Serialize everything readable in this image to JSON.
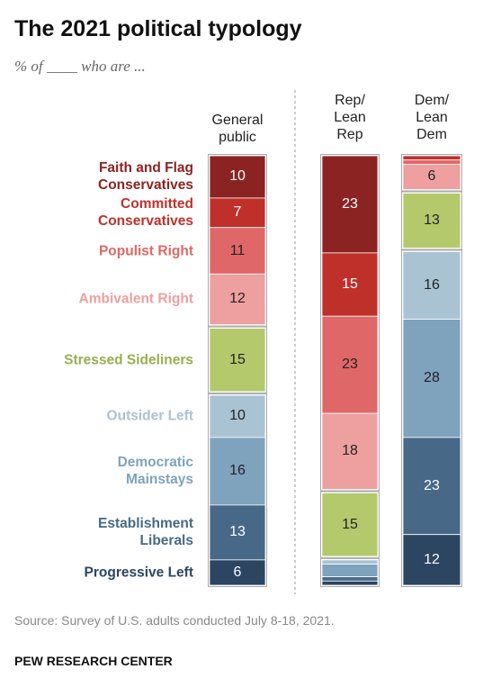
{
  "chart_data": {
    "type": "stacked_bar",
    "title": "The 2021 political typology",
    "subtitle": "% of ____ who are ...",
    "categories": [
      "Faith and Flag Conservatives",
      "Committed Conservatives",
      "Populist Right",
      "Ambivalent Right",
      "Stressed Sideliners",
      "Outsider Left",
      "Democratic Mainstays",
      "Establishment Liberals",
      "Progressive Left"
    ],
    "colors": [
      "#8b2323",
      "#c0302b",
      "#e06767",
      "#ee9f9f",
      "#b4c96b",
      "#a9c3d3",
      "#7fa2bd",
      "#476987",
      "#2c4561"
    ],
    "label_colors": [
      "#8b2323",
      "#c0302b",
      "#e06767",
      "#ee9f9f",
      "#9aad4f",
      "#a9c3d3",
      "#7fa2bd",
      "#476987",
      "#2c4561"
    ],
    "series": [
      {
        "name": "General public",
        "values": [
          10,
          7,
          11,
          12,
          15,
          10,
          16,
          13,
          6
        ]
      },
      {
        "name": "Rep/ Lean Rep",
        "values": [
          23,
          15,
          23,
          18,
          15,
          1,
          3,
          1,
          1
        ]
      },
      {
        "name": "Dem/ Lean Dem",
        "values": [
          0,
          1,
          1,
          6,
          13,
          16,
          28,
          23,
          12
        ]
      }
    ],
    "source": "Source: Survey of U.S. adults conducted July 8-18, 2021.",
    "footer": "PEW RESEARCH CENTER"
  }
}
